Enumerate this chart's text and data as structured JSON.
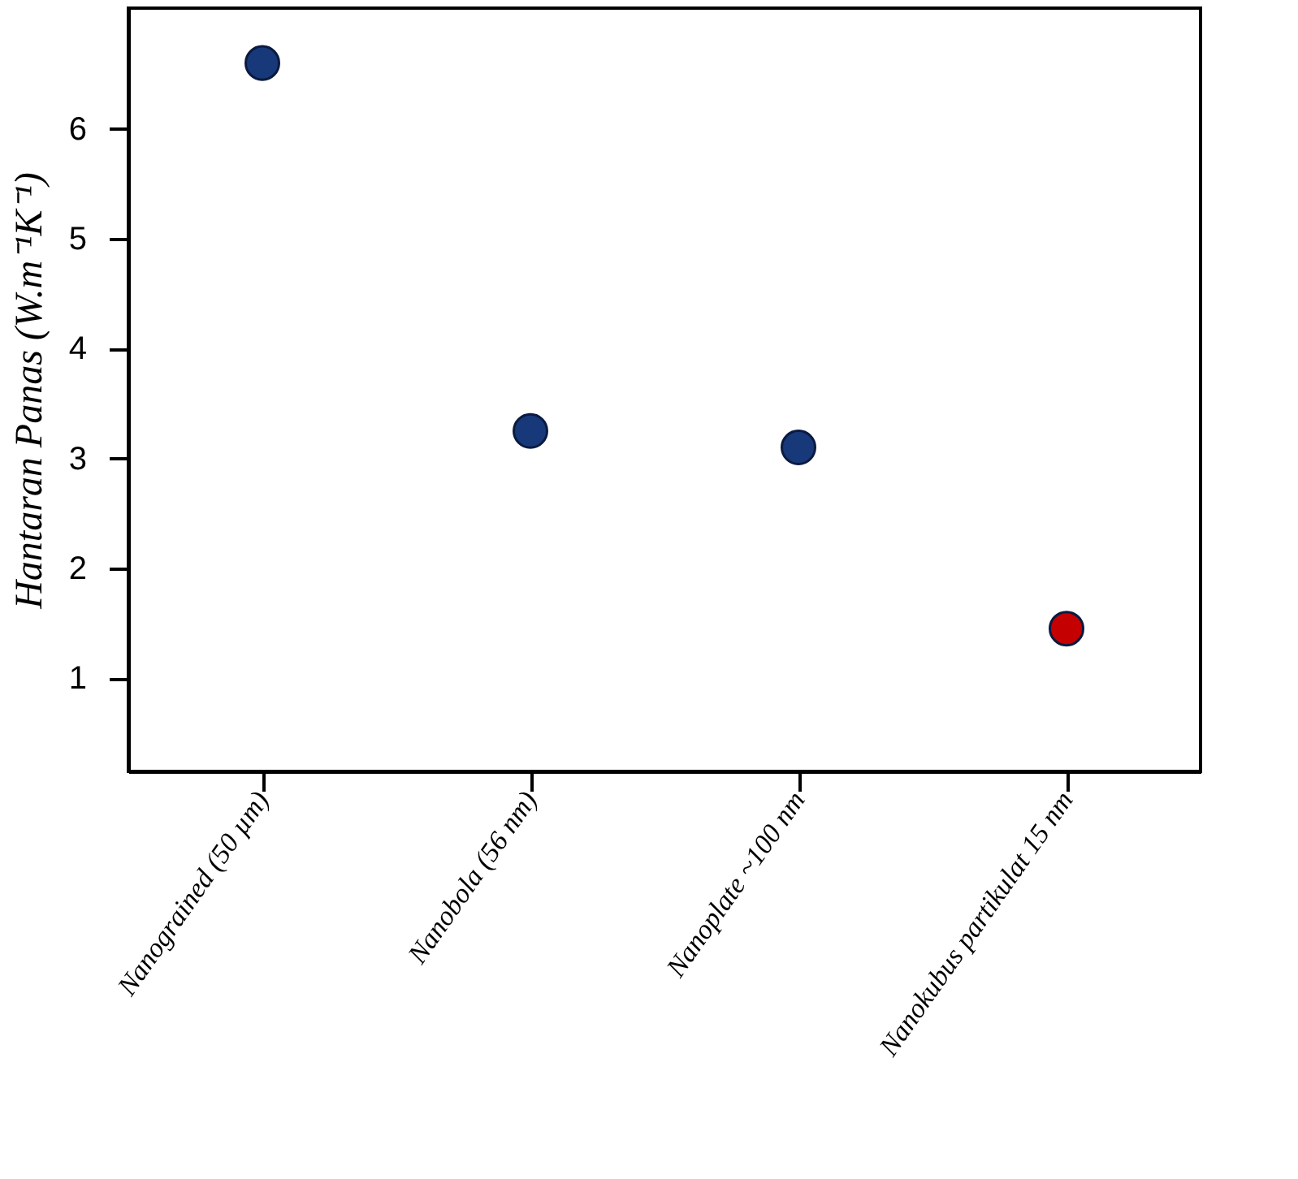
{
  "chart_data": {
    "type": "scatter",
    "categories": [
      "Nanograined (50 µm)",
      "Nanobola (56 nm)",
      "Nanoplate ~100 nm",
      "Nanokubus partikulat 15 nm"
    ],
    "values": [
      6.6,
      3.25,
      3.1,
      1.45
    ],
    "colors": [
      "#17397a",
      "#17397a",
      "#17397a",
      "#c40000"
    ],
    "ylabel": "Hantaran Panas (W.m⁻¹K⁻¹)",
    "ylim": [
      0.15,
      7.1
    ],
    "yticks": [
      1,
      2,
      3,
      4,
      5,
      6
    ],
    "marker": "circle",
    "grid": false
  }
}
